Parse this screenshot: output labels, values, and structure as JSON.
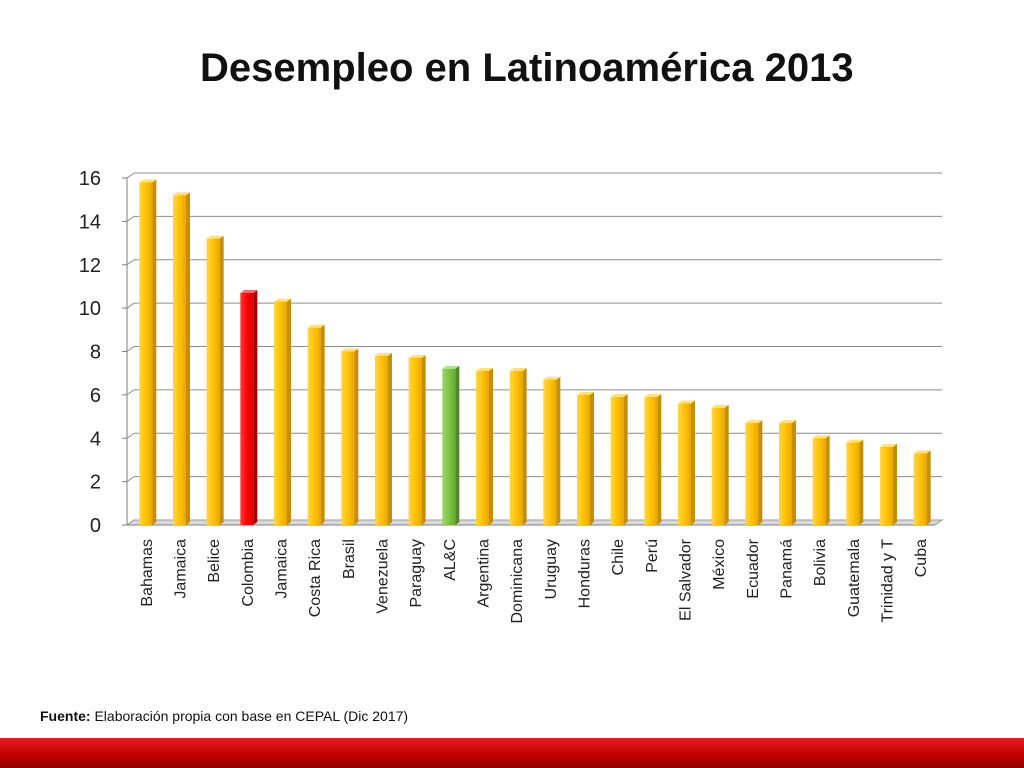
{
  "title": "Desempleo en Latinoamérica 2013",
  "source": {
    "label": "Fuente:",
    "text": "Elaboración propia con base en CEPAL (Dic 2017)"
  },
  "colors": {
    "bar_default": "#ffc000",
    "bar_highlight_red": "#ff0000",
    "bar_highlight_green": "#7ec342",
    "footer_band": "#c00000"
  },
  "chart_data": {
    "type": "bar",
    "title": "",
    "xlabel": "",
    "ylabel": "",
    "ylim": [
      0,
      16
    ],
    "yticks": [
      0,
      2,
      4,
      6,
      8,
      10,
      12,
      14,
      16
    ],
    "grid": true,
    "style": "3d",
    "categories": [
      "Bahamas",
      "Jamaica",
      "Belice",
      "Colombia",
      "Jamaica",
      "Costa Rica",
      "Brasil",
      "Venezuela",
      "Paraguay",
      "AL&C",
      "Argentina",
      "Dominicana",
      "Uruguay",
      "Honduras",
      "Chile",
      "Perú",
      "El Salvador",
      "México",
      "Ecuador",
      "Panamá",
      "Bolivia",
      "Guatemala",
      "Trinidad y T",
      "Cuba"
    ],
    "values": [
      15.8,
      15.2,
      13.2,
      10.7,
      10.3,
      9.1,
      8.0,
      7.8,
      7.7,
      7.2,
      7.1,
      7.1,
      6.7,
      6.0,
      5.9,
      5.9,
      5.6,
      5.4,
      4.7,
      4.7,
      4.0,
      3.8,
      3.6,
      3.3
    ],
    "highlight": {
      "Colombia": "red",
      "AL&C": "green"
    }
  }
}
